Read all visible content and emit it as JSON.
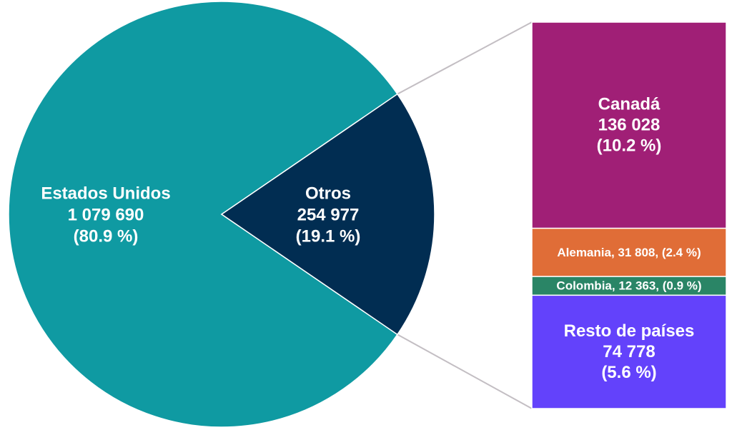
{
  "chart_data": {
    "type": "bar-of-pie",
    "title": "",
    "pie": {
      "slices": [
        {
          "label": "Estados Unidos",
          "value_text": "1 079 690",
          "pct_text": "(80.9 %)",
          "value": 1079690,
          "pct": 80.9,
          "color": "#0f9aa2"
        },
        {
          "label": "Otros",
          "value_text": "254 977",
          "pct_text": "(19.1 %)",
          "value": 254977,
          "pct": 19.1,
          "color": "#012d52"
        }
      ]
    },
    "bar": {
      "segments": [
        {
          "label": "Canadá",
          "value_text": "136 028",
          "pct_text": "(10.2 %)",
          "value": 136028,
          "pct": 10.2,
          "color": "#a01f76",
          "style": "stacked"
        },
        {
          "label": "Alemania, 31 808, (2.4 %)",
          "value": 31808,
          "pct": 2.4,
          "color": "#e06d37",
          "style": "inline"
        },
        {
          "label": "Colombia,  12 363, (0.9 %)",
          "value": 12363,
          "pct": 0.9,
          "color": "#2a8566",
          "style": "inline"
        },
        {
          "label": "Resto de países",
          "value_text": "74 778",
          "pct_text": "(5.6 %)",
          "value": 74778,
          "pct": 5.6,
          "color": "#6342fb",
          "style": "stacked"
        }
      ]
    },
    "connector_color": "#c3bec3",
    "legend": "none",
    "grid": false
  }
}
